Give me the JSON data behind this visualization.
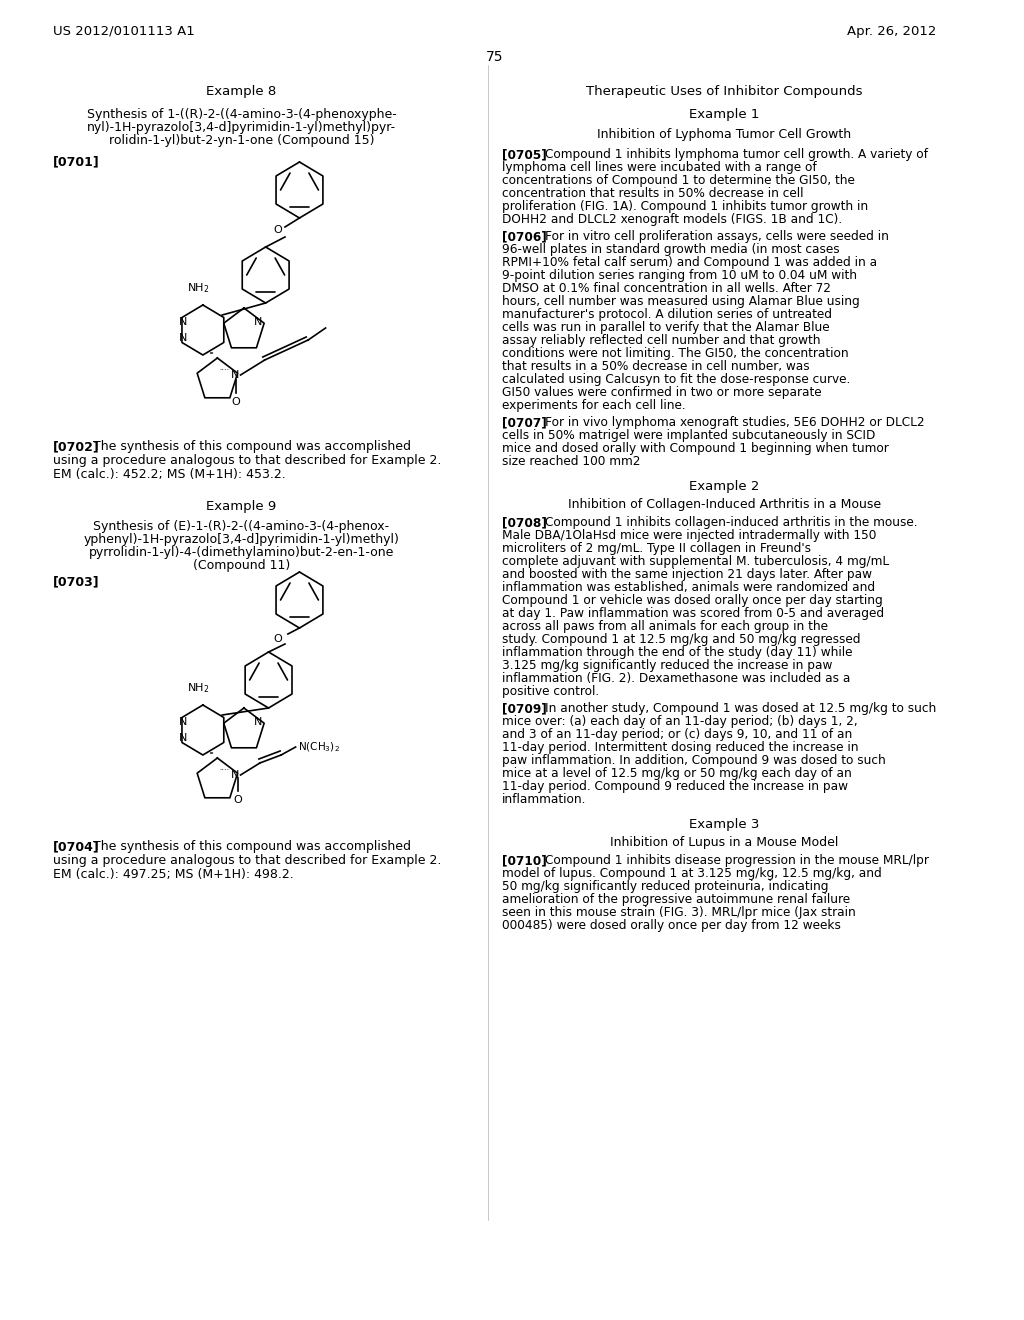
{
  "page_number": "75",
  "patent_number": "US 2012/0101113 A1",
  "patent_date": "Apr. 26, 2012",
  "background_color": "#ffffff",
  "text_color": "#000000",
  "left_column": {
    "example8_title": "Example 8",
    "example8_subtitle_line1": "Synthesis of 1-((R)-2-((4-amino-3-(4-phenoxyphe-",
    "example8_subtitle_line2": "nyl)-1H-pyrazolo[3,4-d]pyrimidin-1-yl)methyl)pyr-",
    "example8_subtitle_line3": "rolidin-1-yl)but-2-yn-1-one (Compound 15)",
    "ref0701": "[0701]",
    "ref0702_text": "[0702] The synthesis of this compound was accomplished using a procedure analogous to that described for Example 2. EM (calc.): 452.2; MS (M+1H): 453.2.",
    "example9_title": "Example 9",
    "example9_subtitle_line1": "Synthesis of (E)-1-(R)-2-((4-amino-3-(4-phenox-",
    "example9_subtitle_line2": "yphenyl)-1H-pyrazolo[3,4-d]pyrimidin-1-yl)methyl)",
    "example9_subtitle_line3": "pyrrolidin-1-yl)-4-(dimethylamino)but-2-en-1-one",
    "example9_subtitle_line4": "(Compound 11)",
    "ref0703": "[0703]",
    "ref0704_text": "[0704] The synthesis of this compound was accomplished using a procedure analogous to that described for Example 2. EM (calc.): 497.25; MS (M+1H): 498.2."
  },
  "right_column": {
    "therapeutic_title": "Therapeutic Uses of Inhibitor Compounds",
    "example1_title": "Example 1",
    "example1_subtitle": "Inhibition of Lyphoma Tumor Cell Growth",
    "ref0705_text": "[0705] Compound 1 inhibits lymphoma tumor cell growth. A variety of lymphoma cell lines were incubated with a range of concentrations of Compound 1 to determine the GI50, the concentration that results in 50% decrease in cell proliferation (FIG. 1A). Compound 1 inhibits tumor growth in DOHH2 and DLCL2 xenograft models (FIGS. 1B and 1C).",
    "ref0706_text": "[0706] For in vitro cell proliferation assays, cells were seeded in 96-well plates in standard growth media (in most cases RPMI+10% fetal calf serum) and Compound 1 was added in a 9-point dilution series ranging from 10 uM to 0.04 uM with DMSO at 0.1% final concentration in all wells. After 72 hours, cell number was measured using Alamar Blue using manufacturer's protocol. A dilution series of untreated cells was run in parallel to verify that the Alamar Blue assay reliably reflected cell number and that growth conditions were not limiting. The GI50, the concentration that results in a 50% decrease in cell number, was calculated using Calcusyn to fit the dose-response curve. GI50 values were confirmed in two or more separate experiments for each cell line.",
    "ref0707_text": "[0707] For in vivo lymphoma xenograft studies, 5E6 DOHH2 or DLCL2 cells in 50% matrigel were implanted subcutaneously in SCID mice and dosed orally with Compound 1 beginning when tumor size reached 100 mm2",
    "example2_title": "Example 2",
    "example2_subtitle": "Inhibition of Collagen-Induced Arthritis in a Mouse",
    "ref0708_text": "[0708] Compound 1 inhibits collagen-induced arthritis in the mouse. Male DBA/1OlaHsd mice were injected intradermally with 150 microliters of 2 mg/mL. Type II collagen in Freund's complete adjuvant with supplemental M. tuberculosis, 4 mg/mL and boosted with the same injection 21 days later. After paw inflammation was established, animals were randomized and Compound 1 or vehicle was dosed orally once per day starting at day 1. Paw inflammation was scored from 0-5 and averaged across all paws from all animals for each group in the study. Compound 1 at 12.5 mg/kg and 50 mg/kg regressed inflammation through the end of the study (day 11) while 3.125 mg/kg significantly reduced the increase in paw inflammation (FIG. 2). Dexamethasone was included as a positive control.",
    "ref0709_text": "[0709] In another study, Compound 1 was dosed at 12.5 mg/kg to such mice over: (a) each day of an 11-day period; (b) days 1, 2, and 3 of an 11-day period; or (c) days 9, 10, and 11 of an 11-day period. Intermittent dosing reduced the increase in paw inflammation. In addition, Compound 9 was dosed to such mice at a level of 12.5 mg/kg or 50 mg/kg each day of an 11-day period. Compound 9 reduced the increase in paw inflammation.",
    "example3_title": "Example 3",
    "example3_subtitle": "Inhibition of Lupus in a Mouse Model",
    "ref0710_text": "[0710] Compound 1 inhibits disease progression in the mouse MRL/lpr model of lupus. Compound 1 at 3.125 mg/kg, 12.5 mg/kg, and 50 mg/kg significantly reduced proteinuria, indicating amelioration of the progressive autoimmune renal failure seen in this mouse strain (FIG. 3). MRL/lpr mice (Jax strain 000485) were dosed orally once per day from 12 weeks"
  }
}
